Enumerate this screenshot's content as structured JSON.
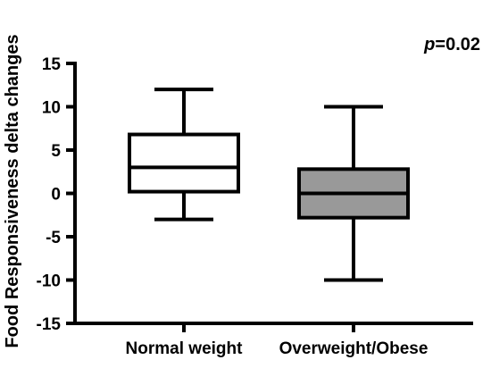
{
  "chart_data": {
    "type": "box",
    "ylabel": "Food Responsiveness delta changes",
    "ylim": [
      -15,
      15
    ],
    "yticks": [
      15,
      10,
      5,
      0,
      -5,
      -10,
      -15
    ],
    "categories": [
      "Normal weight",
      "Overweight/Obese"
    ],
    "boxes": [
      {
        "category": "Normal weight",
        "min": -3,
        "q1": 0.2,
        "median": 3,
        "q3": 6.8,
        "max": 12,
        "fill": "#ffffff"
      },
      {
        "category": "Overweight/Obese",
        "min": -10,
        "q1": -2.8,
        "median": 0,
        "q3": 2.8,
        "max": 10,
        "fill": "#999999"
      }
    ],
    "annotation": {
      "p_symbol": "p",
      "p_value": "=0.02"
    },
    "colors": {
      "line": "#000000"
    }
  }
}
